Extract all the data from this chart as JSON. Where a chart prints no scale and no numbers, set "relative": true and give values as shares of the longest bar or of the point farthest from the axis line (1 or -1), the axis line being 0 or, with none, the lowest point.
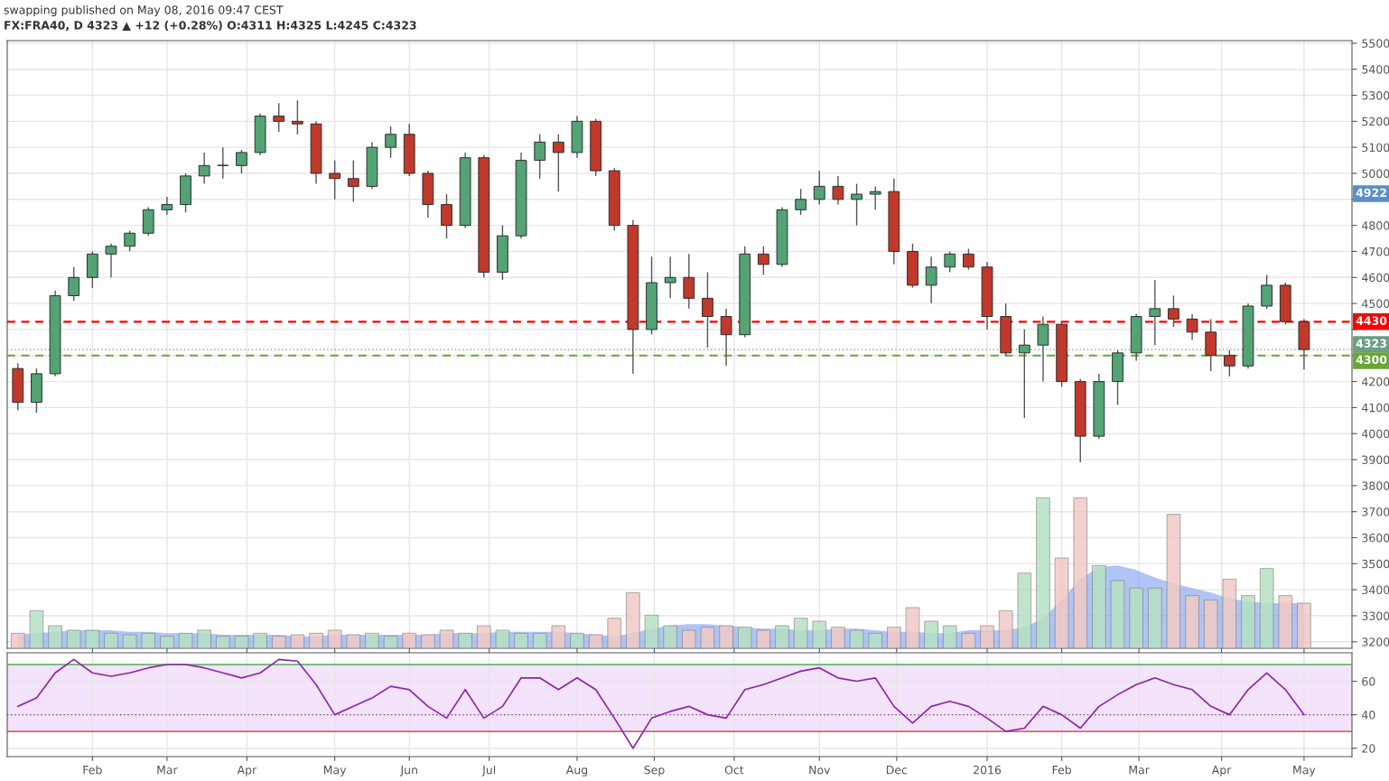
{
  "chart_data": [
    {
      "type": "candlestick",
      "title": "swapping published on May 08, 2016 09:47 CEST",
      "subtitle": "FX:FRA40, D 4323 ▲ +12 (+0.28%) O:4311 H:4325 L:4245 C:4323",
      "x": [
        "2015-01-05",
        "2015-01-12",
        "2015-01-19",
        "2015-01-26",
        "2015-02-02",
        "2015-02-09",
        "2015-02-16",
        "2015-02-23",
        "2015-03-02",
        "2015-03-09",
        "2015-03-16",
        "2015-03-23",
        "2015-03-30",
        "2015-04-06",
        "2015-04-13",
        "2015-04-20",
        "2015-04-27",
        "2015-05-04",
        "2015-05-11",
        "2015-05-18",
        "2015-05-25",
        "2015-06-01",
        "2015-06-08",
        "2015-06-15",
        "2015-06-22",
        "2015-06-29",
        "2015-07-06",
        "2015-07-13",
        "2015-07-20",
        "2015-07-27",
        "2015-08-03",
        "2015-08-10",
        "2015-08-17",
        "2015-08-24",
        "2015-08-31",
        "2015-09-07",
        "2015-09-14",
        "2015-09-21",
        "2015-09-28",
        "2015-10-05",
        "2015-10-12",
        "2015-10-19",
        "2015-10-26",
        "2015-11-02",
        "2015-11-09",
        "2015-11-16",
        "2015-11-23",
        "2015-11-30",
        "2015-12-07",
        "2015-12-14",
        "2015-12-21",
        "2015-12-28",
        "2016-01-04",
        "2016-01-11",
        "2016-01-18",
        "2016-01-25",
        "2016-02-01",
        "2016-02-08",
        "2016-02-15",
        "2016-02-22",
        "2016-02-29",
        "2016-03-07",
        "2016-03-14",
        "2016-03-21",
        "2016-03-28",
        "2016-04-04",
        "2016-04-11",
        "2016-04-18",
        "2016-04-25",
        "2016-05-02"
      ],
      "ohlc": [
        [
          4250,
          4270,
          4090,
          4120
        ],
        [
          4120,
          4250,
          4080,
          4230
        ],
        [
          4230,
          4550,
          4220,
          4530
        ],
        [
          4530,
          4640,
          4510,
          4600
        ],
        [
          4600,
          4700,
          4560,
          4690
        ],
        [
          4690,
          4730,
          4600,
          4720
        ],
        [
          4720,
          4780,
          4700,
          4770
        ],
        [
          4770,
          4870,
          4760,
          4860
        ],
        [
          4860,
          4910,
          4840,
          4880
        ],
        [
          4880,
          5000,
          4850,
          4990
        ],
        [
          4990,
          5080,
          4960,
          5030
        ],
        [
          5030,
          5100,
          4980,
          5030
        ],
        [
          5030,
          5090,
          5000,
          5080
        ],
        [
          5080,
          5230,
          5070,
          5220
        ],
        [
          5220,
          5270,
          5160,
          5200
        ],
        [
          5200,
          5280,
          5150,
          5190
        ],
        [
          5190,
          5200,
          4960,
          5000
        ],
        [
          5000,
          5050,
          4900,
          4980
        ],
        [
          4980,
          5050,
          4890,
          4950
        ],
        [
          4950,
          5120,
          4940,
          5100
        ],
        [
          5100,
          5180,
          5060,
          5150
        ],
        [
          5150,
          5190,
          4990,
          5000
        ],
        [
          5000,
          5010,
          4830,
          4880
        ],
        [
          4880,
          4920,
          4750,
          4800
        ],
        [
          4800,
          5080,
          4790,
          5060
        ],
        [
          5060,
          5070,
          4600,
          4620
        ],
        [
          4620,
          4800,
          4590,
          4760
        ],
        [
          4760,
          5080,
          4750,
          5050
        ],
        [
          5050,
          5150,
          4980,
          5120
        ],
        [
          5120,
          5150,
          4930,
          5080
        ],
        [
          5080,
          5220,
          5060,
          5200
        ],
        [
          5200,
          5210,
          4990,
          5010
        ],
        [
          5010,
          5020,
          4780,
          4800
        ],
        [
          4800,
          4820,
          4230,
          4400
        ],
        [
          4400,
          4680,
          4380,
          4580
        ],
        [
          4580,
          4680,
          4520,
          4600
        ],
        [
          4600,
          4690,
          4480,
          4520
        ],
        [
          4520,
          4620,
          4330,
          4450
        ],
        [
          4450,
          4480,
          4260,
          4380
        ],
        [
          4380,
          4720,
          4370,
          4690
        ],
        [
          4690,
          4720,
          4610,
          4650
        ],
        [
          4650,
          4870,
          4640,
          4860
        ],
        [
          4860,
          4940,
          4840,
          4900
        ],
        [
          4900,
          5010,
          4880,
          4950
        ],
        [
          4950,
          4990,
          4880,
          4900
        ],
        [
          4900,
          4960,
          4800,
          4920
        ],
        [
          4920,
          4950,
          4860,
          4930
        ],
        [
          4930,
          4980,
          4650,
          4700
        ],
        [
          4700,
          4730,
          4560,
          4570
        ],
        [
          4570,
          4680,
          4500,
          4640
        ],
        [
          4640,
          4700,
          4620,
          4690
        ],
        [
          4690,
          4710,
          4630,
          4640
        ],
        [
          4640,
          4660,
          4400,
          4450
        ],
        [
          4450,
          4500,
          4300,
          4310
        ],
        [
          4310,
          4400,
          4060,
          4340
        ],
        [
          4340,
          4450,
          4200,
          4420
        ],
        [
          4420,
          4430,
          4180,
          4200
        ],
        [
          4200,
          4210,
          3890,
          3990
        ],
        [
          3990,
          4230,
          3980,
          4200
        ],
        [
          4200,
          4320,
          4110,
          4310
        ],
        [
          4310,
          4460,
          4280,
          4450
        ],
        [
          4450,
          4590,
          4340,
          4480
        ],
        [
          4480,
          4530,
          4410,
          4440
        ],
        [
          4440,
          4460,
          4360,
          4390
        ],
        [
          4390,
          4440,
          4240,
          4300
        ],
        [
          4300,
          4320,
          4220,
          4260
        ],
        [
          4260,
          4500,
          4250,
          4490
        ],
        [
          4490,
          4610,
          4480,
          4570
        ],
        [
          4570,
          4580,
          4420,
          4430
        ],
        [
          4430,
          4440,
          4245,
          4323
        ]
      ],
      "colors": [
        "#c0392b",
        "#53a374",
        "#53a374",
        "#53a374",
        "#53a374",
        "#53a374",
        "#53a374",
        "#53a374",
        "#53a374",
        "#53a374",
        "#53a374",
        "#53a374",
        "#53a374",
        "#53a374",
        "#c0392b",
        "#c0392b",
        "#c0392b",
        "#c0392b",
        "#c0392b",
        "#53a374",
        "#53a374",
        "#c0392b",
        "#c0392b",
        "#c0392b",
        "#53a374",
        "#c0392b",
        "#53a374",
        "#53a374",
        "#53a374",
        "#c0392b",
        "#53a374",
        "#c0392b",
        "#c0392b",
        "#c0392b",
        "#53a374",
        "#53a374",
        "#c0392b",
        "#c0392b",
        "#c0392b",
        "#53a374",
        "#c0392b",
        "#53a374",
        "#53a374",
        "#53a374",
        "#c0392b",
        "#53a374",
        "#53a374",
        "#c0392b",
        "#c0392b",
        "#53a374",
        "#53a374",
        "#c0392b",
        "#c0392b",
        "#c0392b",
        "#53a374",
        "#53a374",
        "#c0392b",
        "#c0392b",
        "#53a374",
        "#53a374",
        "#53a374",
        "#53a374",
        "#c0392b",
        "#c0392b",
        "#c0392b",
        "#c0392b",
        "#53a374",
        "#53a374",
        "#c0392b",
        "#c0392b"
      ],
      "xlim": [
        "2015-01-01",
        "2016-05-20"
      ],
      "xticks": [
        {
          "value": "2015-02-02",
          "label": null
        },
        {
          "value": "2015-03-02",
          "label": null
        },
        {
          "value": "2015-04-01",
          "label": null
        },
        {
          "value": "2015-05-04",
          "label": null
        },
        {
          "value": "2015-06-01",
          "label": null
        },
        {
          "value": "2015-07-01",
          "label": null
        },
        {
          "value": "2015-08-03",
          "label": null
        },
        {
          "value": "2015-09-01",
          "label": null
        },
        {
          "value": "2015-10-01",
          "label": null
        },
        {
          "value": "2015-11-02",
          "label": null
        },
        {
          "value": "2015-12-01",
          "label": null
        },
        {
          "value": "2016-01-04",
          "label": null
        },
        {
          "value": "2016-02-01",
          "label": null
        },
        {
          "value": "2016-03-01",
          "label": null
        },
        {
          "value": "2016-04-01",
          "label": null
        },
        {
          "value": "2016-05-02",
          "label": null
        }
      ],
      "ylim": [
        3175,
        5510
      ],
      "yticks": [
        3200,
        3300,
        3400,
        3500,
        3600,
        3700,
        3800,
        3900,
        4000,
        4100,
        4200,
        {
          "value": 4300,
          "label": null
        },
        {
          "value": 4400,
          "label": null
        },
        4500,
        4600,
        4700,
        4800,
        {
          "value": 4900,
          "label": null
        },
        5000,
        5100,
        5200,
        5300,
        5400,
        5500
      ],
      "ref_lines": [
        {
          "axis": "y",
          "value": 4430,
          "label": "4430",
          "color": "#ff0000",
          "line_style": "dashed"
        },
        {
          "axis": "y",
          "value": 4323,
          "label": "4323",
          "color": "#6a9f84",
          "line_style": "dotted"
        },
        {
          "axis": "y",
          "value": 4300,
          "label": "4300",
          "color": "#6ba539",
          "line_style": "dashed"
        }
      ],
      "annotations": [
        {
          "text": "4922",
          "y": 4922
        }
      ],
      "grid": true,
      "tick_labels": "y"
    },
    {
      "type": "bar",
      "relative": true,
      "xlim": [
        "2015-01-01",
        "2016-05-20"
      ],
      "tick_labels": false,
      "x": [
        "2015-01-05",
        "2015-01-12",
        "2015-01-19",
        "2015-01-26",
        "2015-02-02",
        "2015-02-09",
        "2015-02-16",
        "2015-02-23",
        "2015-03-02",
        "2015-03-09",
        "2015-03-16",
        "2015-03-23",
        "2015-03-30",
        "2015-04-06",
        "2015-04-13",
        "2015-04-20",
        "2015-04-27",
        "2015-05-04",
        "2015-05-11",
        "2015-05-18",
        "2015-05-25",
        "2015-06-01",
        "2015-06-08",
        "2015-06-15",
        "2015-06-22",
        "2015-06-29",
        "2015-07-06",
        "2015-07-13",
        "2015-07-20",
        "2015-07-27",
        "2015-08-03",
        "2015-08-10",
        "2015-08-17",
        "2015-08-24",
        "2015-08-31",
        "2015-09-07",
        "2015-09-14",
        "2015-09-21",
        "2015-09-28",
        "2015-10-05",
        "2015-10-12",
        "2015-10-19",
        "2015-10-26",
        "2015-11-02",
        "2015-11-09",
        "2015-11-16",
        "2015-11-23",
        "2015-11-30",
        "2015-12-07",
        "2015-12-14",
        "2015-12-21",
        "2015-12-28",
        "2016-01-04",
        "2016-01-11",
        "2016-01-18",
        "2016-01-25",
        "2016-02-01",
        "2016-02-08",
        "2016-02-15",
        "2016-02-22",
        "2016-02-29",
        "2016-03-07",
        "2016-03-14",
        "2016-03-21",
        "2016-03-28",
        "2016-04-04",
        "2016-04-11",
        "2016-04-18",
        "2016-04-25",
        "2016-05-02"
      ],
      "series": [
        {
          "type": "bar",
          "values": [
            0.1,
            0.25,
            0.15,
            0.12,
            0.12,
            0.1,
            0.09,
            0.1,
            0.08,
            0.1,
            0.12,
            0.08,
            0.08,
            0.1,
            0.08,
            0.09,
            0.1,
            0.12,
            0.09,
            0.1,
            0.08,
            0.1,
            0.09,
            0.12,
            0.1,
            0.15,
            0.12,
            0.1,
            0.1,
            0.15,
            0.1,
            0.09,
            0.2,
            0.37,
            0.22,
            0.15,
            0.12,
            0.14,
            0.15,
            0.14,
            0.12,
            0.15,
            0.2,
            0.18,
            0.14,
            0.12,
            0.1,
            0.14,
            0.27,
            0.18,
            0.15,
            0.1,
            0.15,
            0.25,
            0.5,
            1.0,
            0.6,
            1.0,
            0.55,
            0.45,
            0.4,
            0.4,
            0.89,
            0.35,
            0.32,
            0.46,
            0.35,
            0.53,
            0.35,
            0.3
          ],
          "colors": [
            "#f0c9c6",
            "#b7e1c4",
            "#b7e1c4",
            "#b7e1c4",
            "#b7e1c4",
            "#b7e1c4",
            "#b7e1c4",
            "#b7e1c4",
            "#b7e1c4",
            "#b7e1c4",
            "#b7e1c4",
            "#b7e1c4",
            "#b7e1c4",
            "#b7e1c4",
            "#f0c9c6",
            "#f0c9c6",
            "#f0c9c6",
            "#f0c9c6",
            "#f0c9c6",
            "#b7e1c4",
            "#b7e1c4",
            "#f0c9c6",
            "#f0c9c6",
            "#f0c9c6",
            "#b7e1c4",
            "#f0c9c6",
            "#b7e1c4",
            "#b7e1c4",
            "#b7e1c4",
            "#f0c9c6",
            "#b7e1c4",
            "#f0c9c6",
            "#f0c9c6",
            "#f0c9c6",
            "#b7e1c4",
            "#b7e1c4",
            "#f0c9c6",
            "#f0c9c6",
            "#f0c9c6",
            "#b7e1c4",
            "#f0c9c6",
            "#b7e1c4",
            "#b7e1c4",
            "#b7e1c4",
            "#f0c9c6",
            "#b7e1c4",
            "#b7e1c4",
            "#f0c9c6",
            "#f0c9c6",
            "#b7e1c4",
            "#b7e1c4",
            "#f0c9c6",
            "#f0c9c6",
            "#f0c9c6",
            "#b7e1c4",
            "#b7e1c4",
            "#f0c9c6",
            "#f0c9c6",
            "#b7e1c4",
            "#b7e1c4",
            "#b7e1c4",
            "#b7e1c4",
            "#f0c9c6",
            "#f0c9c6",
            "#f0c9c6",
            "#f0c9c6",
            "#b7e1c4",
            "#b7e1c4",
            "#f0c9c6",
            "#f0c9c6"
          ]
        },
        {
          "type": "area",
          "color": "#7b9cf0",
          "values": [
            0.09,
            0.1,
            0.11,
            0.12,
            0.12,
            0.12,
            0.11,
            0.11,
            0.1,
            0.1,
            0.1,
            0.09,
            0.09,
            0.09,
            0.09,
            0.08,
            0.08,
            0.09,
            0.09,
            0.09,
            0.09,
            0.09,
            0.09,
            0.1,
            0.1,
            0.1,
            0.11,
            0.11,
            0.11,
            0.11,
            0.1,
            0.09,
            0.08,
            0.1,
            0.13,
            0.15,
            0.16,
            0.16,
            0.15,
            0.14,
            0.13,
            0.13,
            0.12,
            0.12,
            0.13,
            0.13,
            0.12,
            0.11,
            0.11,
            0.1,
            0.1,
            0.12,
            0.12,
            0.12,
            0.14,
            0.2,
            0.32,
            0.46,
            0.54,
            0.55,
            0.52,
            0.47,
            0.43,
            0.4,
            0.37,
            0.33,
            0.31,
            0.3,
            0.3,
            0.3
          ]
        }
      ]
    },
    {
      "type": "line",
      "xlim": [
        "2015-01-01",
        "2016-05-20"
      ],
      "x": [
        "2015-01-05",
        "2015-01-12",
        "2015-01-19",
        "2015-01-26",
        "2015-02-02",
        "2015-02-09",
        "2015-02-16",
        "2015-02-23",
        "2015-03-02",
        "2015-03-09",
        "2015-03-16",
        "2015-03-23",
        "2015-03-30",
        "2015-04-06",
        "2015-04-13",
        "2015-04-20",
        "2015-04-27",
        "2015-05-04",
        "2015-05-11",
        "2015-05-18",
        "2015-05-25",
        "2015-06-01",
        "2015-06-08",
        "2015-06-15",
        "2015-06-22",
        "2015-06-29",
        "2015-07-06",
        "2015-07-13",
        "2015-07-20",
        "2015-07-27",
        "2015-08-03",
        "2015-08-10",
        "2015-08-17",
        "2015-08-24",
        "2015-08-31",
        "2015-09-07",
        "2015-09-14",
        "2015-09-21",
        "2015-09-28",
        "2015-10-05",
        "2015-10-12",
        "2015-10-19",
        "2015-10-26",
        "2015-11-02",
        "2015-11-09",
        "2015-11-16",
        "2015-11-23",
        "2015-11-30",
        "2015-12-07",
        "2015-12-14",
        "2015-12-21",
        "2015-12-28",
        "2016-01-04",
        "2016-01-11",
        "2016-01-18",
        "2016-01-25",
        "2016-02-01",
        "2016-02-08",
        "2016-02-15",
        "2016-02-22",
        "2016-02-29",
        "2016-03-07",
        "2016-03-14",
        "2016-03-21",
        "2016-03-28",
        "2016-04-04",
        "2016-04-11",
        "2016-04-18",
        "2016-04-25",
        "2016-05-02"
      ],
      "series": [
        {
          "color": "#8e24aa",
          "values": [
            45,
            50,
            65,
            73,
            65,
            63,
            65,
            68,
            70,
            70,
            68,
            65,
            62,
            65,
            73,
            72,
            58,
            40,
            45,
            50,
            57,
            55,
            45,
            38,
            55,
            38,
            45,
            62,
            62,
            55,
            62,
            55,
            38,
            20,
            38,
            42,
            45,
            40,
            38,
            55,
            58,
            62,
            66,
            68,
            62,
            60,
            62,
            45,
            35,
            45,
            48,
            45,
            38,
            30,
            32,
            45,
            40,
            32,
            45,
            52,
            58,
            62,
            58,
            55,
            45,
            40,
            55,
            65,
            55,
            40
          ]
        }
      ],
      "xticks": [
        {
          "value": "2015-02-02",
          "label": "Feb"
        },
        {
          "value": "2015-03-02",
          "label": "Mar"
        },
        {
          "value": "2015-04-01",
          "label": "Apr"
        },
        {
          "value": "2015-05-04",
          "label": "May"
        },
        {
          "value": "2015-06-01",
          "label": "Jun"
        },
        {
          "value": "2015-07-01",
          "label": "Jul"
        },
        {
          "value": "2015-08-03",
          "label": "Aug"
        },
        {
          "value": "2015-09-01",
          "label": "Sep"
        },
        {
          "value": "2015-10-01",
          "label": "Oct"
        },
        {
          "value": "2015-11-02",
          "label": "Nov"
        },
        {
          "value": "2015-12-01",
          "label": "Dec"
        },
        {
          "value": "2016-01-04",
          "label": "2016"
        },
        {
          "value": "2016-02-01",
          "label": "Feb"
        },
        {
          "value": "2016-03-01",
          "label": "Mar"
        },
        {
          "value": "2016-04-01",
          "label": "Apr"
        },
        {
          "value": "2016-05-02",
          "label": "May"
        }
      ],
      "ylim": [
        15,
        77
      ],
      "yticks": [
        20,
        40,
        60
      ],
      "bands": [
        {
          "axis": "y",
          "from": 30,
          "to": 70,
          "color": "#f3e3fb"
        }
      ],
      "ref_lines": [
        {
          "axis": "y",
          "value": 70,
          "color": "#4caf50",
          "line_style": "solid"
        },
        {
          "axis": "y",
          "value": 30,
          "color": "#d32f2f",
          "line_style": "solid"
        },
        {
          "axis": "y",
          "value": 40,
          "color": "#8e24aa",
          "line_style": "dotted"
        }
      ],
      "grid": true
    }
  ]
}
